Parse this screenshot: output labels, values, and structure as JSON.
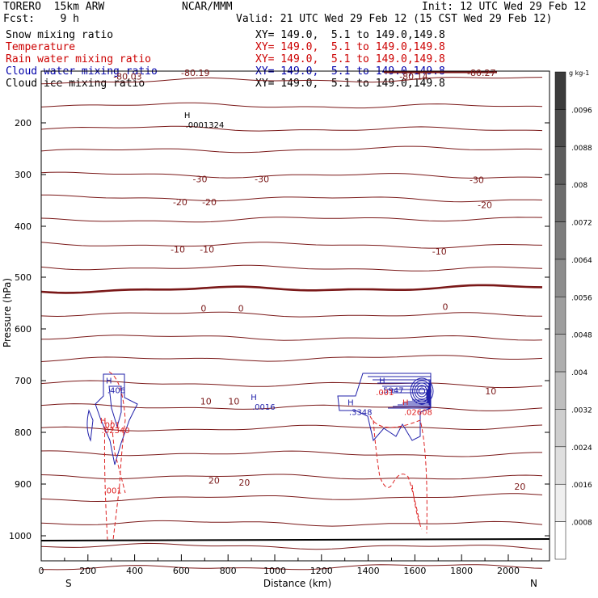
{
  "header": {
    "model": "TORERO  15km ARW",
    "org": "NCAR/MMM",
    "init": "Init: 12 UTC Wed 29 Feb 12",
    "fcst": "Fcst:    9 h",
    "valid": "Valid: 21 UTC Wed 29 Feb 12 (15 CST Wed 29 Feb 12)"
  },
  "legend": [
    {
      "label": "Snow mixing ratio",
      "xy": "XY= 149.0,  5.1 to 149.0,149.8",
      "color": "#000000"
    },
    {
      "label": "Temperature",
      "xy": "XY= 149.0,  5.1 to 149.0,149.8",
      "color": "#cc0000"
    },
    {
      "label": "Rain water mixing ratio",
      "xy": "XY= 149.0,  5.1 to 149.0,149.8",
      "color": "#cc0000"
    },
    {
      "label": "Cloud water mixing ratio",
      "xy": "XY= 149.0,  5.1 to 149.0,149.8",
      "color": "#0000aa"
    },
    {
      "label": "Cloud ice mixing ratio",
      "xy": "XY= 149.0,  5.1 to 149.0,149.8",
      "color": "#000000"
    }
  ],
  "colors": {
    "temperature": "#7a1818",
    "zero_isotherm": "#7a1818",
    "rain": "#dd2222",
    "cloud_water": "#2020aa",
    "frame": "#000000"
  },
  "chart_data": {
    "type": "contour",
    "xlabel": "Distance (km)",
    "ylabel": "Pressure (hPa)",
    "x_ticks": [
      0,
      200,
      400,
      600,
      800,
      1000,
      1200,
      1400,
      1600,
      1800,
      2000
    ],
    "y_ticks": [
      200,
      300,
      400,
      500,
      600,
      700,
      800,
      900,
      1000
    ],
    "xlim": [
      0,
      2180
    ],
    "ylim_hpa": [
      1050,
      100
    ],
    "left_end": "S",
    "right_end": "N",
    "colorbar": {
      "unit": "g kg-1",
      "ticks": [
        ".0096",
        ".0088",
        ".008",
        ".0072",
        ".0064",
        ".0056",
        ".0048",
        ".004",
        ".0032",
        ".0024",
        ".0016",
        ".0008"
      ]
    },
    "temperature_contours": [
      {
        "label": "-80.19",
        "x": 660,
        "p": 105
      },
      {
        "label": "-80.27",
        "x": 1885,
        "p": 105
      },
      {
        "label": "-80.03",
        "x": 370,
        "p": 112
      },
      {
        "label": "-80.14",
        "x": 1595,
        "p": 112
      },
      {
        "label": "-30",
        "x": 680,
        "p": 310
      },
      {
        "label": "-30",
        "x": 945,
        "p": 310
      },
      {
        "label": "-30",
        "x": 1865,
        "p": 312
      },
      {
        "label": "-20",
        "x": 595,
        "p": 355
      },
      {
        "label": "-20",
        "x": 720,
        "p": 355
      },
      {
        "label": "-20",
        "x": 1900,
        "p": 360
      },
      {
        "label": "-10",
        "x": 585,
        "p": 446
      },
      {
        "label": "-10",
        "x": 710,
        "p": 446
      },
      {
        "label": "-10",
        "x": 1705,
        "p": 450
      },
      {
        "label": "0",
        "x": 695,
        "p": 560
      },
      {
        "label": "0",
        "x": 855,
        "p": 560
      },
      {
        "label": "0",
        "x": 1730,
        "p": 557
      },
      {
        "label": "10",
        "x": 705,
        "p": 740
      },
      {
        "label": "10",
        "x": 825,
        "p": 740
      },
      {
        "label": "10",
        "x": 1925,
        "p": 720
      },
      {
        "label": "20",
        "x": 740,
        "p": 893
      },
      {
        "label": "20",
        "x": 870,
        "p": 897
      },
      {
        "label": "20",
        "x": 2050,
        "p": 905
      }
    ],
    "maxima": [
      {
        "field": "snow",
        "label": "H",
        "value": ".0001324",
        "x": 625,
        "p": 205
      },
      {
        "field": "cloud_water",
        "label": "H",
        "value": ".406",
        "x": 290,
        "p": 718
      },
      {
        "field": "cloud_water",
        "label": "H",
        "value": ".0016",
        "x": 910,
        "p": 750
      },
      {
        "field": "cloud_water",
        "label": "H",
        "value": ".3348",
        "x": 1325,
        "p": 760
      },
      {
        "field": "cloud_water",
        "label": "H",
        "value": ".5947",
        "x": 1460,
        "p": 718
      },
      {
        "field": "rain",
        "label": "H",
        "value": ".02340",
        "x": 265,
        "p": 795
      },
      {
        "field": "rain",
        "label": "H",
        "value": ".02608",
        "x": 1560,
        "p": 760
      },
      {
        "field": "rain",
        "label": "",
        "value": ".001",
        "x": 268,
        "p": 785
      },
      {
        "field": "rain",
        "label": "",
        "value": ".001",
        "x": 1440,
        "p": 722
      },
      {
        "field": "rain",
        "label": "",
        "value": ".001",
        "x": 275,
        "p": 912
      }
    ]
  }
}
